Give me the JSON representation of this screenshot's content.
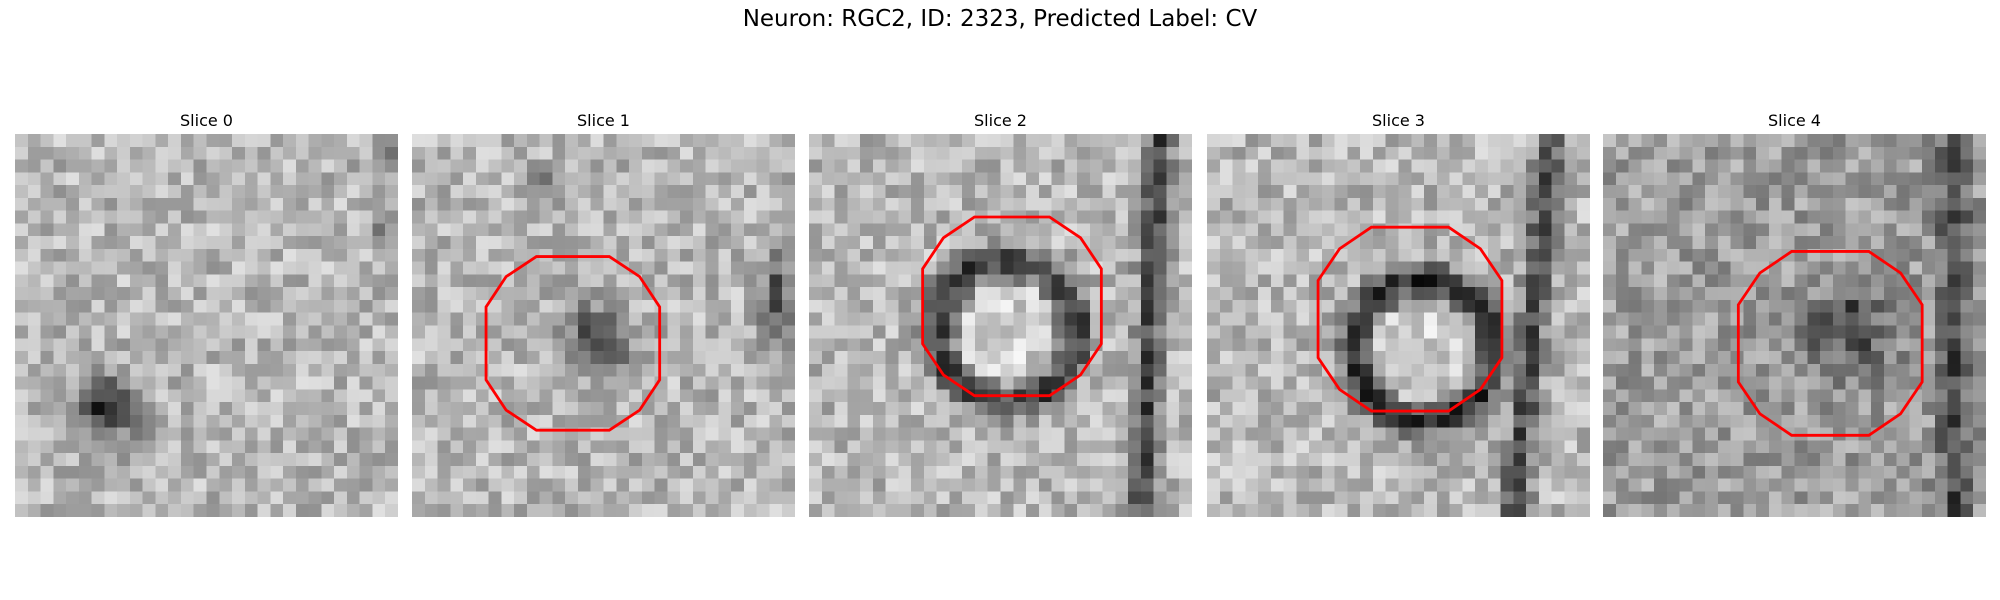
{
  "header": {
    "title": "Neuron: RGC2, ID: 2323, Predicted Label: CV"
  },
  "slices": [
    {
      "title": "Slice 0"
    },
    {
      "title": "Slice 1"
    },
    {
      "title": "Slice 2"
    },
    {
      "title": "Slice 3"
    },
    {
      "title": "Slice 4"
    }
  ]
}
